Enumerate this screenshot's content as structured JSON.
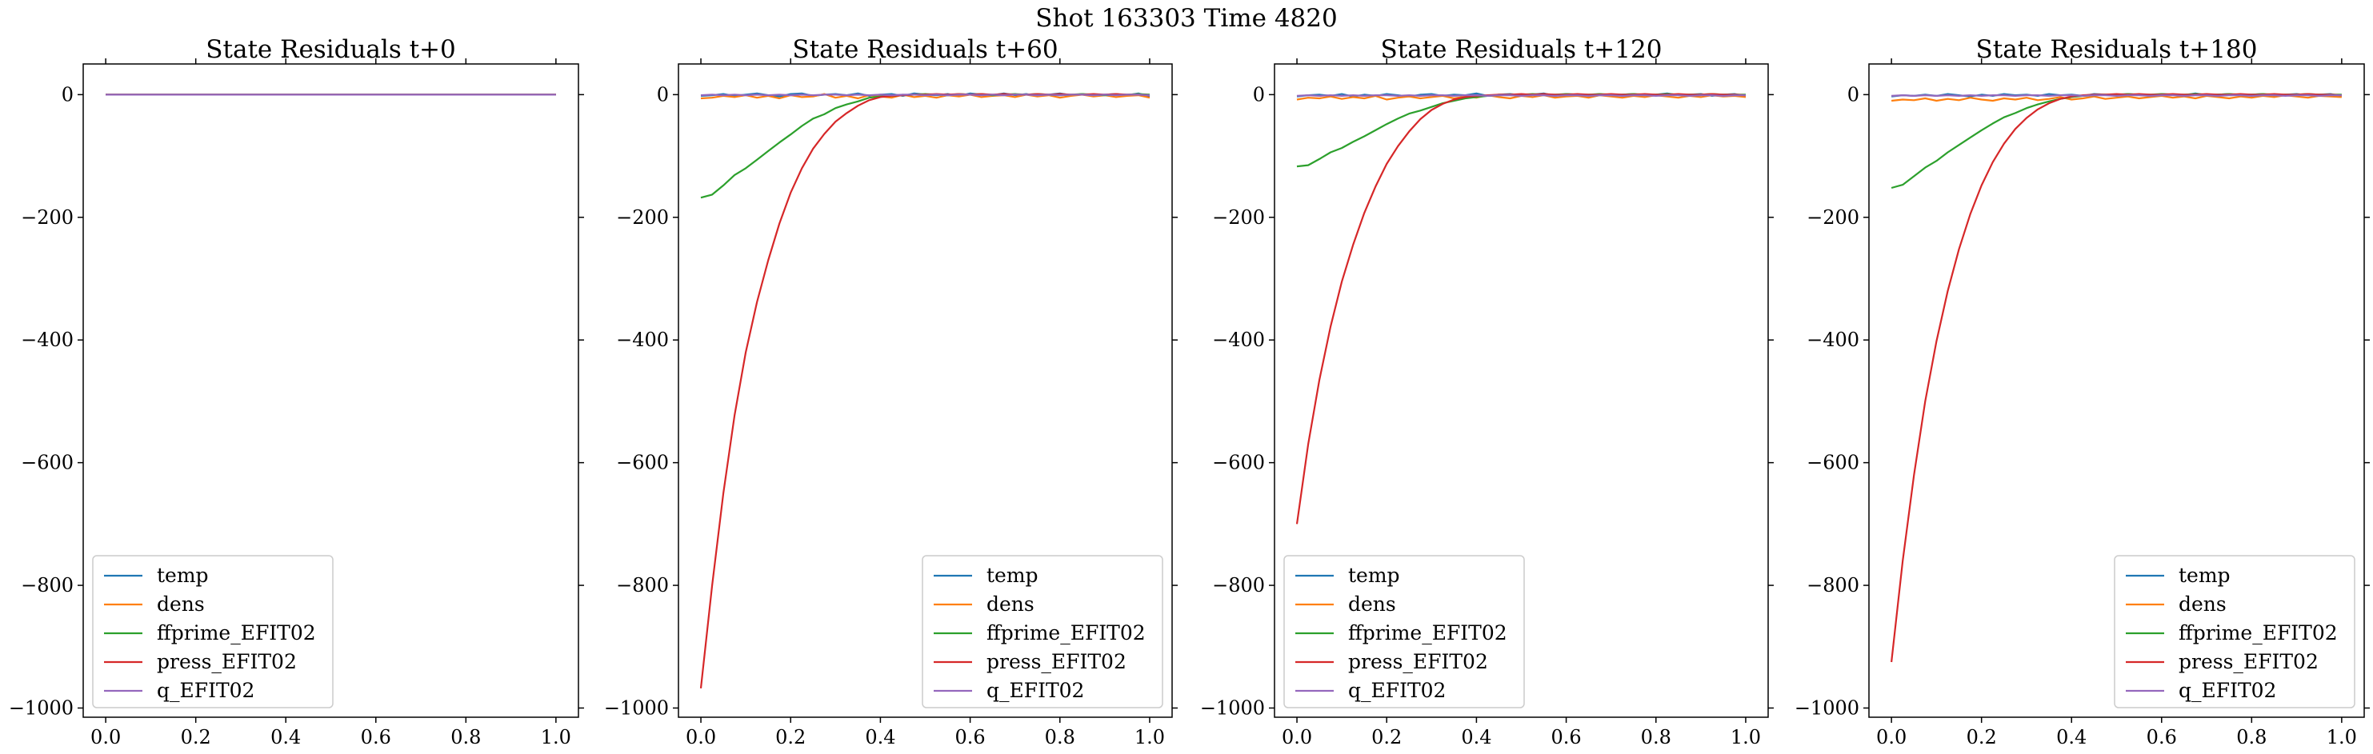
{
  "suptitle": "Shot 163303   Time 4820",
  "legend_labels": [
    "temp",
    "dens",
    "ffprime_EFIT02",
    "press_EFIT02",
    "q_EFIT02"
  ],
  "series_colors": [
    "#1f77b4",
    "#ff7f0e",
    "#2ca02c",
    "#d62728",
    "#9467bd"
  ],
  "chart_data": [
    {
      "type": "line",
      "title": "State Residuals t+0",
      "xlim": [
        -0.05,
        1.05
      ],
      "ylim": [
        -1015,
        50
      ],
      "xticks": [
        0.0,
        0.2,
        0.4,
        0.6,
        0.8,
        1.0
      ],
      "xtick_labels": [
        "0.0",
        "0.2",
        "0.4",
        "0.6",
        "0.8",
        "1.0"
      ],
      "yticks": [
        0,
        -200,
        -400,
        -600,
        -800,
        -1000
      ],
      "ytick_labels": [
        "0",
        "−200",
        "−400",
        "−600",
        "−800",
        "−1000"
      ],
      "legend_position": "lower-left",
      "x": [
        0.0,
        0.5,
        1.0
      ],
      "series": [
        {
          "name": "temp",
          "values": [
            0,
            0,
            0
          ]
        },
        {
          "name": "dens",
          "values": [
            0,
            0,
            0
          ]
        },
        {
          "name": "ffprime_EFIT02",
          "values": [
            0,
            0,
            0
          ]
        },
        {
          "name": "press_EFIT02",
          "values": [
            0,
            0,
            0
          ]
        },
        {
          "name": "q_EFIT02",
          "values": [
            0,
            0,
            0
          ]
        }
      ]
    },
    {
      "type": "line",
      "title": "State Residuals t+60",
      "xlim": [
        -0.05,
        1.05
      ],
      "ylim": [
        -1015,
        50
      ],
      "xticks": [
        0.0,
        0.2,
        0.4,
        0.6,
        0.8,
        1.0
      ],
      "xtick_labels": [
        "0.0",
        "0.2",
        "0.4",
        "0.6",
        "0.8",
        "1.0"
      ],
      "yticks": [
        0,
        -200,
        -400,
        -600,
        -800,
        -1000
      ],
      "ytick_labels": [
        "0",
        "−200",
        "−400",
        "−600",
        "−800",
        "−1000"
      ],
      "legend_position": "lower-right",
      "x": [
        0.0,
        0.025,
        0.05,
        0.075,
        0.1,
        0.125,
        0.15,
        0.175,
        0.2,
        0.225,
        0.25,
        0.275,
        0.3,
        0.325,
        0.35,
        0.375,
        0.4,
        0.425,
        0.45,
        0.475,
        0.5,
        0.525,
        0.55,
        0.575,
        0.6,
        0.625,
        0.65,
        0.675,
        0.7,
        0.725,
        0.75,
        0.775,
        0.8,
        0.825,
        0.85,
        0.875,
        0.9,
        0.925,
        0.95,
        0.975,
        1.0
      ],
      "series": [
        {
          "name": "temp",
          "values": [
            -2,
            -1,
            1,
            -2,
            0,
            2,
            -1,
            -3,
            1,
            2,
            -2,
            0,
            1,
            -1,
            2,
            -2,
            0,
            1,
            -2,
            2,
            0,
            -1,
            1,
            -2,
            2,
            0,
            -1,
            2,
            -1,
            1,
            -2,
            0,
            2,
            -1,
            1,
            -2,
            0,
            1,
            -1,
            2,
            -3
          ]
        },
        {
          "name": "dens",
          "values": [
            -6,
            -5,
            -2,
            -4,
            -1,
            -5,
            -2,
            -6,
            -1,
            -4,
            -3,
            1,
            -5,
            -2,
            -6,
            -1,
            -3,
            -5,
            0,
            -4,
            -2,
            -5,
            -1,
            -3,
            0,
            -4,
            -2,
            -1,
            -4,
            0,
            -3,
            -1,
            -5,
            -2,
            0,
            -3,
            -1,
            -4,
            -2,
            -1,
            -5
          ]
        },
        {
          "name": "ffprime_EFIT02",
          "values": [
            -168,
            -163,
            -148,
            -131,
            -120,
            -106,
            -92,
            -78,
            -65,
            -51,
            -39,
            -32,
            -22,
            -16,
            -11,
            -5,
            -3,
            -2,
            -1,
            0,
            1,
            0,
            -1,
            1,
            0,
            1,
            -1,
            0,
            1,
            0,
            1,
            0,
            -1,
            0,
            1,
            0,
            -1,
            0,
            0,
            1,
            0
          ]
        },
        {
          "name": "press_EFIT02",
          "values": [
            -968,
            -800,
            -650,
            -523,
            -420,
            -338,
            -270,
            -210,
            -160,
            -120,
            -88,
            -64,
            -44,
            -30,
            -18,
            -9,
            -4,
            -2,
            -1,
            0,
            0,
            1,
            0,
            1,
            0,
            1,
            0,
            1,
            0,
            0,
            1,
            0,
            1,
            0,
            0,
            1,
            0,
            1,
            0,
            0,
            -1
          ]
        },
        {
          "name": "q_EFIT02",
          "values": [
            -1,
            0,
            -1,
            0,
            -1,
            0,
            -1,
            0,
            -1,
            0,
            -1,
            0,
            0,
            -1,
            0,
            -1,
            0,
            -1,
            0,
            0,
            -1,
            0,
            -1,
            0,
            0,
            -1,
            0,
            -1,
            0,
            0,
            -1,
            0,
            -1,
            0,
            0,
            -1,
            0,
            -1,
            0,
            0,
            -1
          ]
        }
      ]
    },
    {
      "type": "line",
      "title": "State Residuals t+120",
      "xlim": [
        -0.05,
        1.05
      ],
      "ylim": [
        -1015,
        50
      ],
      "xticks": [
        0.0,
        0.2,
        0.4,
        0.6,
        0.8,
        1.0
      ],
      "xtick_labels": [
        "0.0",
        "0.2",
        "0.4",
        "0.6",
        "0.8",
        "1.0"
      ],
      "yticks": [
        0,
        -200,
        -400,
        -600,
        -800,
        -1000
      ],
      "ytick_labels": [
        "0",
        "−200",
        "−400",
        "−600",
        "−800",
        "−1000"
      ],
      "legend_position": "lower-left",
      "x": [
        0.0,
        0.025,
        0.05,
        0.075,
        0.1,
        0.125,
        0.15,
        0.175,
        0.2,
        0.225,
        0.25,
        0.275,
        0.3,
        0.325,
        0.35,
        0.375,
        0.4,
        0.425,
        0.45,
        0.475,
        0.5,
        0.525,
        0.55,
        0.575,
        0.6,
        0.625,
        0.65,
        0.675,
        0.7,
        0.725,
        0.75,
        0.775,
        0.8,
        0.825,
        0.85,
        0.875,
        0.9,
        0.925,
        0.95,
        0.975,
        1.0
      ],
      "series": [
        {
          "name": "temp",
          "values": [
            -3,
            -1,
            0,
            -2,
            1,
            -3,
            0,
            -2,
            1,
            -1,
            -3,
            0,
            1,
            -2,
            0,
            -1,
            2,
            -2,
            0,
            1,
            -1,
            0,
            2,
            -2,
            1,
            0,
            -1,
            1,
            -2,
            0,
            1,
            -1,
            0,
            2,
            -1,
            0,
            1,
            -2,
            0,
            1,
            -2
          ]
        },
        {
          "name": "dens",
          "values": [
            -8,
            -5,
            -6,
            -3,
            -7,
            -4,
            -6,
            -2,
            -8,
            -5,
            -3,
            -6,
            -4,
            -2,
            -6,
            -3,
            -5,
            -1,
            -4,
            -6,
            -2,
            -4,
            -1,
            -5,
            -3,
            -2,
            -5,
            -1,
            -3,
            -5,
            -2,
            -4,
            -1,
            -3,
            -5,
            -2,
            -4,
            -1,
            -3,
            -2,
            -4
          ]
        },
        {
          "name": "ffprime_EFIT02",
          "values": [
            -117,
            -115,
            -105,
            -94,
            -87,
            -77,
            -68,
            -58,
            -48,
            -39,
            -31,
            -26,
            -20,
            -14,
            -10,
            -6,
            -4,
            -2,
            -1,
            0,
            0,
            1,
            0,
            0,
            1,
            0,
            0,
            1,
            0,
            0,
            1,
            0,
            0,
            1,
            0,
            0,
            0,
            1,
            0,
            0,
            0
          ]
        },
        {
          "name": "press_EFIT02",
          "values": [
            -700,
            -570,
            -465,
            -378,
            -305,
            -245,
            -193,
            -150,
            -113,
            -84,
            -60,
            -40,
            -25,
            -15,
            -8,
            -4,
            -2,
            -1,
            0,
            0,
            1,
            0,
            1,
            0,
            0,
            1,
            0,
            0,
            1,
            0,
            0,
            1,
            0,
            0,
            1,
            0,
            0,
            1,
            0,
            0,
            -1
          ]
        },
        {
          "name": "q_EFIT02",
          "values": [
            -2,
            -1,
            -2,
            -1,
            -2,
            -1,
            -2,
            -1,
            -1,
            -2,
            -1,
            -2,
            -1,
            -1,
            -2,
            -1,
            -1,
            -2,
            -1,
            -1,
            -2,
            -1,
            -1,
            -2,
            -1,
            -1,
            -2,
            -1,
            -1,
            -2,
            -1,
            -1,
            -2,
            -1,
            -1,
            -2,
            -1,
            -1,
            -2,
            -1,
            -1
          ]
        }
      ]
    },
    {
      "type": "line",
      "title": "State Residuals t+180",
      "xlim": [
        -0.05,
        1.05
      ],
      "ylim": [
        -1015,
        50
      ],
      "xticks": [
        0.0,
        0.2,
        0.4,
        0.6,
        0.8,
        1.0
      ],
      "xtick_labels": [
        "0.0",
        "0.2",
        "0.4",
        "0.6",
        "0.8",
        "1.0"
      ],
      "yticks": [
        0,
        -200,
        -400,
        -600,
        -800,
        -1000
      ],
      "ytick_labels": [
        "0",
        "−200",
        "−400",
        "−600",
        "−800",
        "−1000"
      ],
      "legend_position": "lower-right",
      "x": [
        0.0,
        0.025,
        0.05,
        0.075,
        0.1,
        0.125,
        0.15,
        0.175,
        0.2,
        0.225,
        0.25,
        0.275,
        0.3,
        0.325,
        0.35,
        0.375,
        0.4,
        0.425,
        0.45,
        0.475,
        0.5,
        0.525,
        0.55,
        0.575,
        0.6,
        0.625,
        0.65,
        0.675,
        0.7,
        0.725,
        0.75,
        0.775,
        0.8,
        0.825,
        0.85,
        0.875,
        0.9,
        0.925,
        0.95,
        0.975,
        1.0
      ],
      "series": [
        {
          "name": "temp",
          "values": [
            -3,
            -1,
            -2,
            0,
            -2,
            1,
            -1,
            -3,
            0,
            -2,
            1,
            -1,
            0,
            -2,
            1,
            -1,
            0,
            -2,
            1,
            0,
            -1,
            1,
            0,
            -2,
            1,
            0,
            -1,
            2,
            -1,
            0,
            1,
            -1,
            0,
            1,
            -2,
            0,
            1,
            -1,
            0,
            1,
            -2
          ]
        },
        {
          "name": "dens",
          "values": [
            -10,
            -8,
            -9,
            -6,
            -10,
            -7,
            -9,
            -5,
            -8,
            -10,
            -6,
            -8,
            -5,
            -9,
            -7,
            -4,
            -8,
            -6,
            -3,
            -7,
            -5,
            -3,
            -6,
            -4,
            -2,
            -5,
            -3,
            -6,
            -2,
            -4,
            -6,
            -3,
            -5,
            -2,
            -4,
            -1,
            -3,
            -5,
            -2,
            -3,
            -4
          ]
        },
        {
          "name": "ffprime_EFIT02",
          "values": [
            -152,
            -147,
            -133,
            -119,
            -108,
            -94,
            -82,
            -70,
            -58,
            -47,
            -37,
            -30,
            -22,
            -16,
            -11,
            -7,
            -4,
            -2,
            -1,
            0,
            0,
            1,
            0,
            0,
            1,
            0,
            0,
            1,
            0,
            0,
            1,
            0,
            0,
            1,
            0,
            0,
            0,
            1,
            0,
            0,
            0
          ]
        },
        {
          "name": "press_EFIT02",
          "values": [
            -925,
            -760,
            -620,
            -500,
            -402,
            -320,
            -252,
            -195,
            -148,
            -110,
            -80,
            -56,
            -38,
            -24,
            -14,
            -7,
            -3,
            -1,
            0,
            0,
            1,
            0,
            1,
            0,
            0,
            1,
            0,
            0,
            1,
            0,
            0,
            1,
            0,
            0,
            1,
            0,
            0,
            1,
            0,
            0,
            -1
          ]
        },
        {
          "name": "q_EFIT02",
          "values": [
            -2,
            -1,
            -2,
            -1,
            -2,
            -1,
            -2,
            -1,
            -2,
            -1,
            -1,
            -2,
            -1,
            -1,
            -2,
            -1,
            -1,
            -2,
            -1,
            -1,
            -2,
            -1,
            -1,
            -2,
            -1,
            -1,
            -2,
            -1,
            -1,
            -2,
            -1,
            -1,
            -2,
            -1,
            -1,
            -2,
            -1,
            -1,
            -2,
            -1,
            -1
          ]
        }
      ]
    }
  ]
}
